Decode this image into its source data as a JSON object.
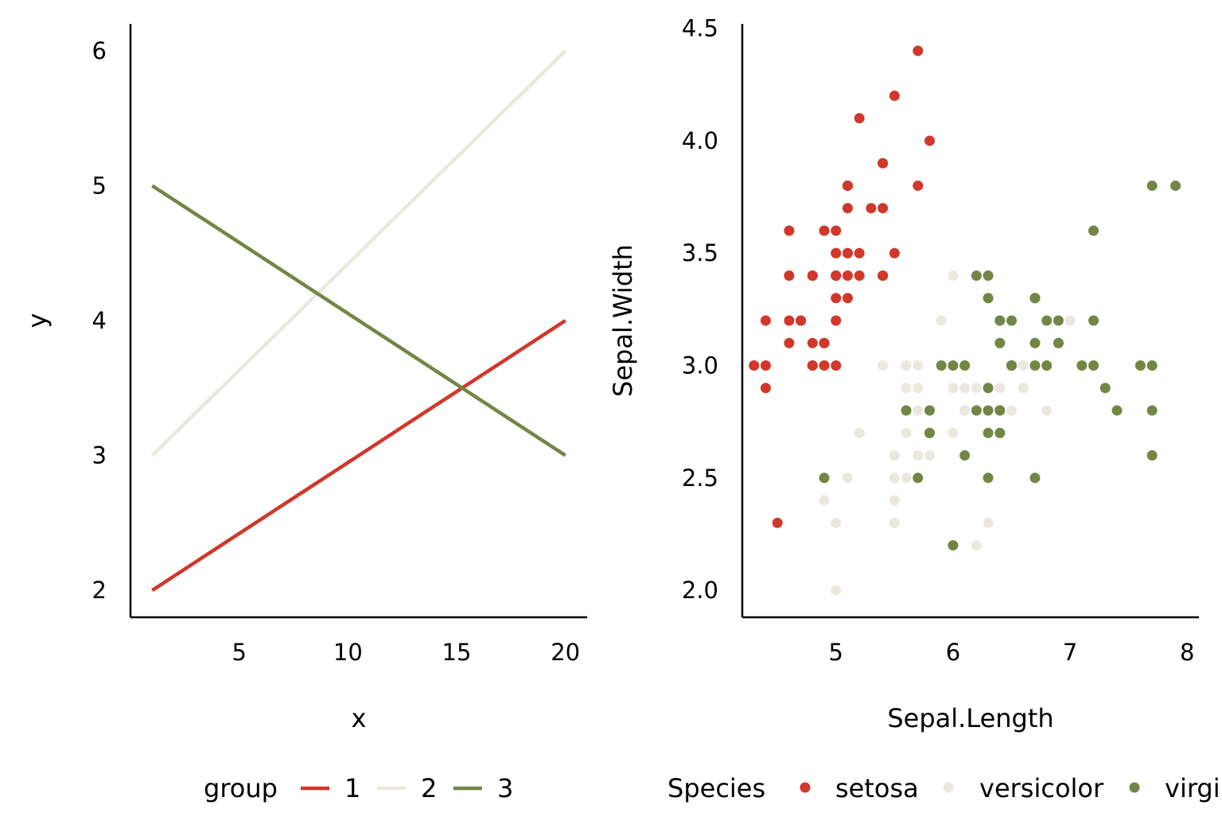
{
  "colors": {
    "red": "#D1372A",
    "cream": "#EAE8DF",
    "olive": "#748544",
    "axis": "#000000"
  },
  "chart_data": [
    {
      "type": "line",
      "xlabel": "x",
      "ylabel": "y",
      "xlim": [
        0,
        21
      ],
      "ylim": [
        1.8,
        6.2
      ],
      "xticks": [
        5,
        10,
        15,
        20
      ],
      "yticks": [
        2,
        3,
        4,
        5,
        6
      ],
      "legend": {
        "title": "group",
        "position": "bottom"
      },
      "series": [
        {
          "name": "1",
          "color": "#D1372A",
          "x": [
            1,
            20
          ],
          "y": [
            2,
            4
          ]
        },
        {
          "name": "2",
          "color": "#EAE8DF",
          "x": [
            1,
            20
          ],
          "y": [
            3,
            6
          ]
        },
        {
          "name": "3",
          "color": "#748544",
          "x": [
            1,
            20
          ],
          "y": [
            5,
            3
          ]
        }
      ]
    },
    {
      "type": "scatter",
      "xlabel": "Sepal.Length",
      "ylabel": "Sepal.Width",
      "xlim": [
        4.2,
        8.1
      ],
      "ylim": [
        1.88,
        4.52
      ],
      "xticks": [
        5,
        6,
        7,
        8
      ],
      "yticks": [
        "2.0",
        "2.5",
        "3.0",
        "3.5",
        "4.0",
        "4.5"
      ],
      "legend": {
        "title": "Species",
        "position": "bottom"
      },
      "series": [
        {
          "name": "setosa",
          "color": "#D1372A",
          "points": [
            [
              5.1,
              3.5
            ],
            [
              4.9,
              3.0
            ],
            [
              4.7,
              3.2
            ],
            [
              4.6,
              3.1
            ],
            [
              5.0,
              3.6
            ],
            [
              5.4,
              3.9
            ],
            [
              4.6,
              3.4
            ],
            [
              5.0,
              3.4
            ],
            [
              4.4,
              2.9
            ],
            [
              4.9,
              3.1
            ],
            [
              5.4,
              3.7
            ],
            [
              4.8,
              3.4
            ],
            [
              4.8,
              3.0
            ],
            [
              4.3,
              3.0
            ],
            [
              5.8,
              4.0
            ],
            [
              5.7,
              4.4
            ],
            [
              5.4,
              3.9
            ],
            [
              5.1,
              3.5
            ],
            [
              5.7,
              3.8
            ],
            [
              5.1,
              3.8
            ],
            [
              5.4,
              3.4
            ],
            [
              5.1,
              3.7
            ],
            [
              4.6,
              3.6
            ],
            [
              5.1,
              3.3
            ],
            [
              4.8,
              3.4
            ],
            [
              5.0,
              3.0
            ],
            [
              5.0,
              3.4
            ],
            [
              5.2,
              3.5
            ],
            [
              5.2,
              3.4
            ],
            [
              4.7,
              3.2
            ],
            [
              4.8,
              3.1
            ],
            [
              5.4,
              3.4
            ],
            [
              5.2,
              4.1
            ],
            [
              5.5,
              4.2
            ],
            [
              4.9,
              3.1
            ],
            [
              5.0,
              3.2
            ],
            [
              5.5,
              3.5
            ],
            [
              4.9,
              3.6
            ],
            [
              4.4,
              3.0
            ],
            [
              5.1,
              3.4
            ],
            [
              5.0,
              3.5
            ],
            [
              4.5,
              2.3
            ],
            [
              4.4,
              3.2
            ],
            [
              5.0,
              3.5
            ],
            [
              5.1,
              3.8
            ],
            [
              4.8,
              3.0
            ],
            [
              5.1,
              3.8
            ],
            [
              4.6,
              3.2
            ],
            [
              5.3,
              3.7
            ],
            [
              5.0,
              3.3
            ]
          ]
        },
        {
          "name": "versicolor",
          "color": "#EAE8DF",
          "points": [
            [
              7.0,
              3.2
            ],
            [
              6.4,
              3.2
            ],
            [
              6.9,
              3.1
            ],
            [
              5.5,
              2.3
            ],
            [
              6.5,
              2.8
            ],
            [
              5.7,
              2.8
            ],
            [
              6.3,
              3.3
            ],
            [
              4.9,
              2.4
            ],
            [
              6.6,
              2.9
            ],
            [
              5.2,
              2.7
            ],
            [
              5.0,
              2.0
            ],
            [
              5.9,
              3.0
            ],
            [
              6.0,
              2.2
            ],
            [
              6.1,
              2.9
            ],
            [
              5.6,
              2.9
            ],
            [
              6.7,
              3.1
            ],
            [
              5.6,
              3.0
            ],
            [
              5.8,
              2.7
            ],
            [
              6.2,
              2.2
            ],
            [
              5.6,
              2.5
            ],
            [
              5.9,
              3.2
            ],
            [
              6.1,
              2.8
            ],
            [
              6.3,
              2.5
            ],
            [
              6.1,
              2.8
            ],
            [
              6.4,
              2.9
            ],
            [
              6.6,
              3.0
            ],
            [
              6.8,
              2.8
            ],
            [
              6.7,
              3.0
            ],
            [
              6.0,
              2.9
            ],
            [
              5.7,
              2.6
            ],
            [
              5.5,
              2.4
            ],
            [
              5.5,
              2.4
            ],
            [
              5.8,
              2.7
            ],
            [
              6.0,
              2.7
            ],
            [
              5.4,
              3.0
            ],
            [
              6.0,
              3.4
            ],
            [
              6.7,
              3.1
            ],
            [
              6.3,
              2.3
            ],
            [
              5.6,
              3.0
            ],
            [
              5.5,
              2.5
            ],
            [
              5.5,
              2.6
            ],
            [
              6.1,
              3.0
            ],
            [
              5.8,
              2.6
            ],
            [
              5.0,
              2.3
            ],
            [
              5.6,
              2.7
            ],
            [
              5.7,
              3.0
            ],
            [
              5.7,
              2.9
            ],
            [
              6.2,
              2.9
            ],
            [
              5.1,
              2.5
            ],
            [
              5.7,
              2.8
            ]
          ]
        },
        {
          "name": "virginica",
          "color": "#748544",
          "points": [
            [
              6.3,
              3.3
            ],
            [
              5.8,
              2.7
            ],
            [
              7.1,
              3.0
            ],
            [
              6.3,
              2.9
            ],
            [
              6.5,
              3.0
            ],
            [
              7.6,
              3.0
            ],
            [
              4.9,
              2.5
            ],
            [
              7.3,
              2.9
            ],
            [
              6.7,
              2.5
            ],
            [
              7.2,
              3.6
            ],
            [
              6.5,
              3.2
            ],
            [
              6.4,
              2.7
            ],
            [
              6.8,
              3.0
            ],
            [
              5.7,
              2.5
            ],
            [
              5.8,
              2.8
            ],
            [
              6.4,
              3.2
            ],
            [
              6.5,
              3.0
            ],
            [
              7.7,
              3.8
            ],
            [
              7.7,
              2.6
            ],
            [
              6.0,
              2.2
            ],
            [
              6.9,
              3.2
            ],
            [
              5.6,
              2.8
            ],
            [
              7.7,
              2.8
            ],
            [
              6.3,
              2.7
            ],
            [
              6.7,
              3.3
            ],
            [
              7.2,
              3.2
            ],
            [
              6.2,
              2.8
            ],
            [
              6.1,
              3.0
            ],
            [
              6.4,
              2.8
            ],
            [
              7.2,
              3.0
            ],
            [
              7.4,
              2.8
            ],
            [
              7.9,
              3.8
            ],
            [
              6.4,
              2.8
            ],
            [
              6.3,
              2.8
            ],
            [
              6.1,
              2.6
            ],
            [
              7.7,
              3.0
            ],
            [
              6.3,
              3.4
            ],
            [
              6.4,
              3.1
            ],
            [
              6.0,
              3.0
            ],
            [
              6.9,
              3.1
            ],
            [
              6.7,
              3.1
            ],
            [
              6.9,
              3.1
            ],
            [
              5.8,
              2.7
            ],
            [
              6.8,
              3.2
            ],
            [
              6.7,
              3.3
            ],
            [
              6.7,
              3.0
            ],
            [
              6.3,
              2.5
            ],
            [
              6.5,
              3.0
            ],
            [
              6.2,
              3.4
            ],
            [
              5.9,
              3.0
            ]
          ]
        }
      ]
    }
  ]
}
